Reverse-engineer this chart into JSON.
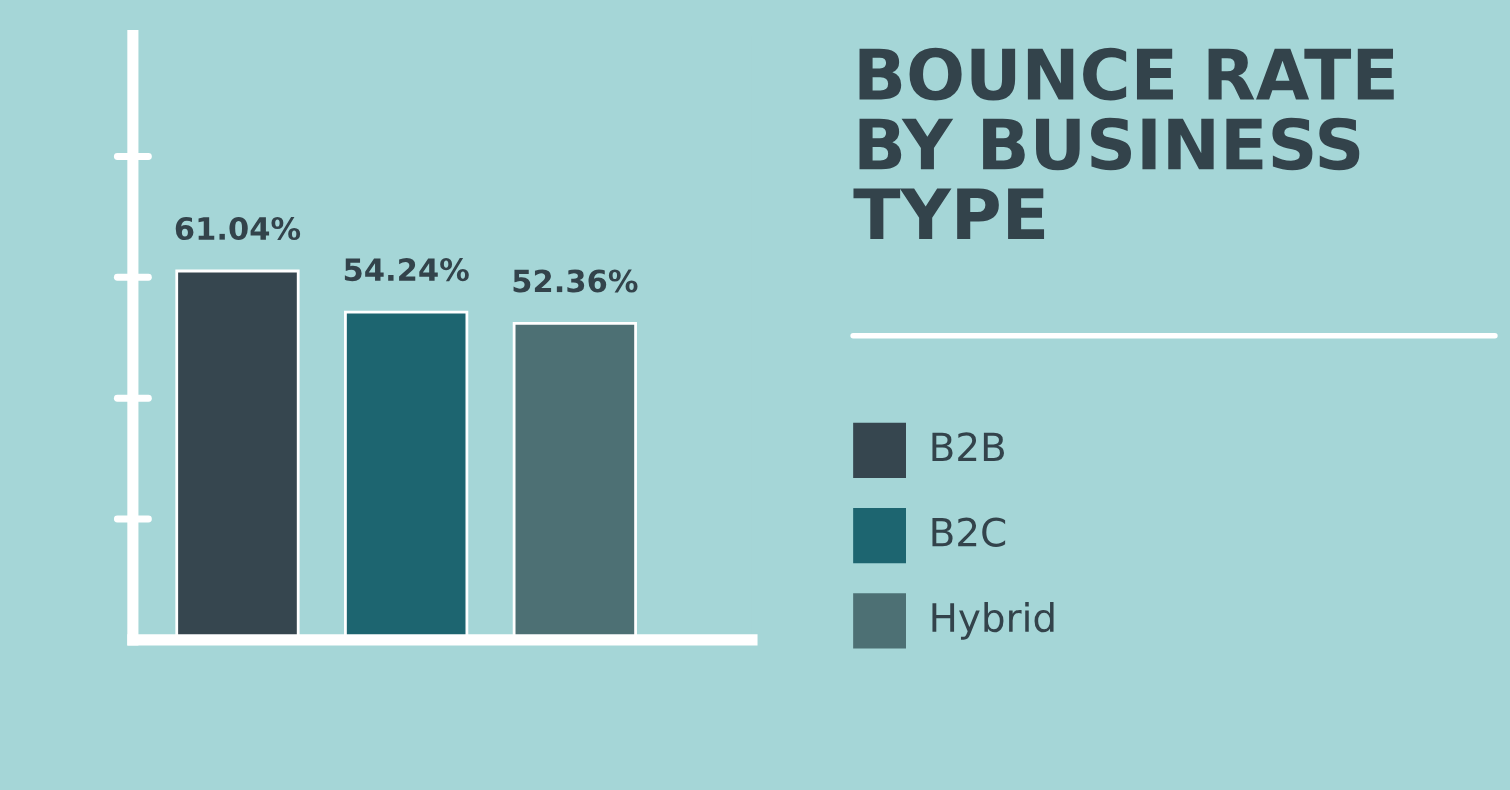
{
  "chart_data": {
    "type": "bar",
    "title": "BOUNCE RATE\nBY BUSINESS\nTYPE",
    "categories": [
      null,
      null,
      null
    ],
    "values": [
      61.04,
      54.24,
      52.36
    ],
    "colors": [
      "#36464f",
      "#1d6570",
      "#4d7074"
    ],
    "value_labels": [
      "61.04%",
      "54.24%",
      "52.36%"
    ],
    "ylim": [
      0,
      100
    ],
    "annotations": [
      "B2B",
      "B2C",
      "Hybrid"
    ]
  }
}
